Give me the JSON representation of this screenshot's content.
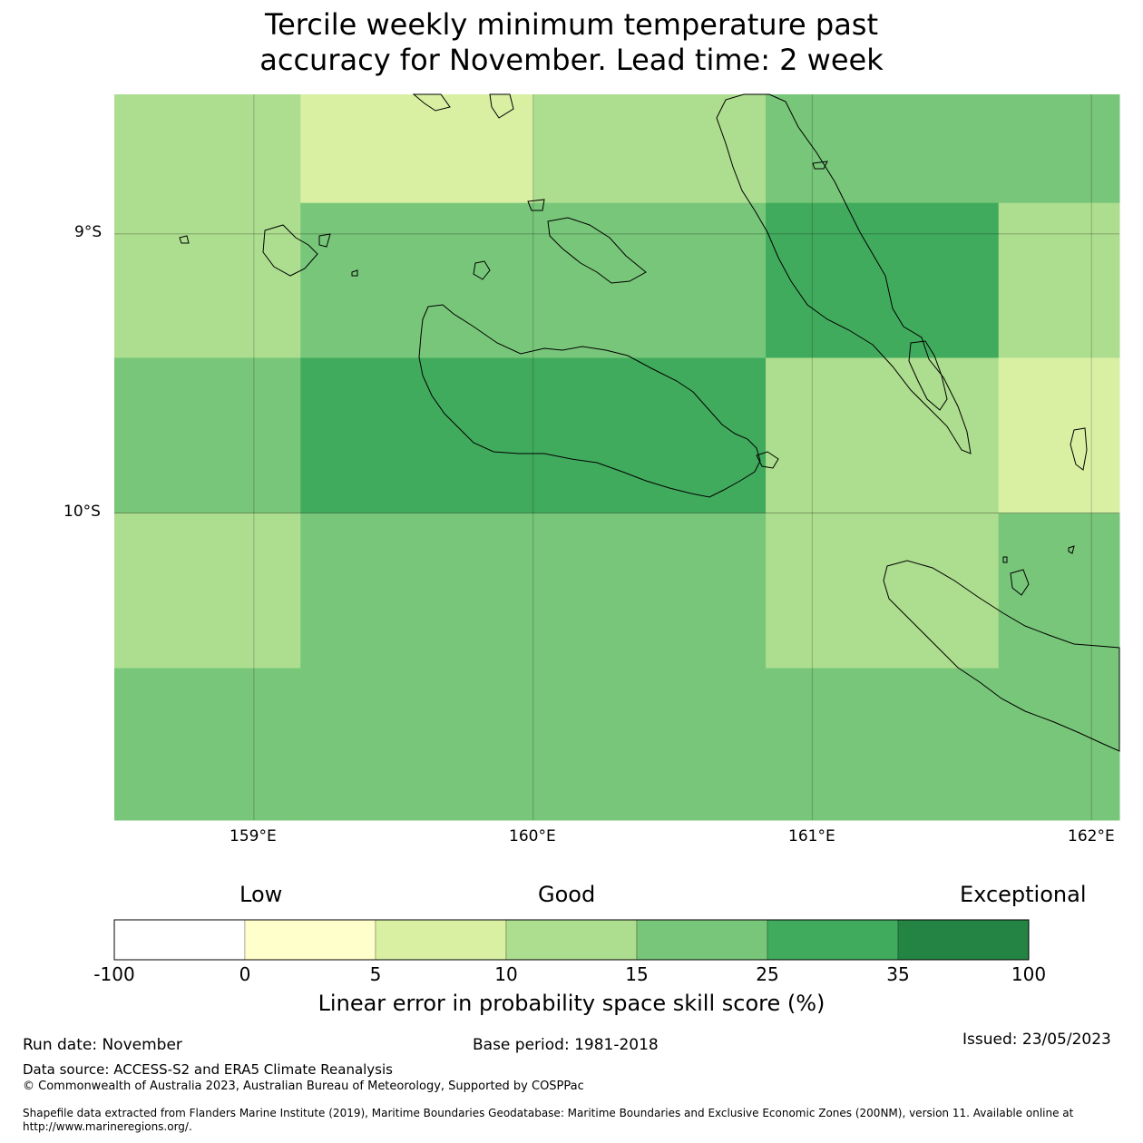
{
  "title": {
    "line1": "Tercile weekly minimum temperature past",
    "line2": "accuracy for November. Lead time: 2 week"
  },
  "map": {
    "lon_range": [
      158.5,
      162.1
    ],
    "lat_range": [
      -8.5,
      -11.1
    ],
    "lat_labels": [
      "9°S",
      "10°S"
    ],
    "lon_labels": [
      "159°E",
      "160°E",
      "161°E",
      "162°E"
    ],
    "cell_lon_edges": [
      158.5,
      159.167,
      160.0,
      160.833,
      161.667,
      162.1
    ],
    "cell_lat_edges": [
      -8.5,
      -8.889,
      -9.444,
      -10.0,
      -10.556,
      -11.1
    ],
    "skill_category_grid": [
      [
        3,
        2,
        3,
        4,
        4
      ],
      [
        3,
        4,
        4,
        5,
        3
      ],
      [
        4,
        5,
        5,
        3,
        2
      ],
      [
        3,
        4,
        4,
        3,
        4
      ],
      [
        4,
        4,
        4,
        4,
        4
      ]
    ]
  },
  "colorbar": {
    "headers": {
      "low": "Low",
      "good": "Good",
      "exceptional": "Exceptional"
    },
    "ticks": [
      "-100",
      "0",
      "5",
      "10",
      "15",
      "25",
      "35",
      "100"
    ],
    "colors": [
      "#ffffff",
      "#ffffcc",
      "#d9f0a3",
      "#addd8e",
      "#78c679",
      "#41ab5d",
      "#238443"
    ],
    "label": "Linear error in probability space skill score (%)"
  },
  "footer": {
    "run_date": "Run date: November",
    "base_period": "Base period: 1981-2018",
    "issued": "Issued: 23/05/2023",
    "data_source": "Data source: ACCESS-S2 and ERA5 Climate Reanalysis",
    "copyright": "© Commonwealth of Australia 2023, Australian Bureau of Meteorology, Supported by COSPPac",
    "shapefile_line1": "Shapefile data extracted from Flanders Marine Institute (2019), Maritime Boundaries Geodatabase: Maritime Boundaries and Exclusive Economic Zones (200NM), version 11. Available online at",
    "shapefile_line2": "http://www.marineregions.org/."
  }
}
